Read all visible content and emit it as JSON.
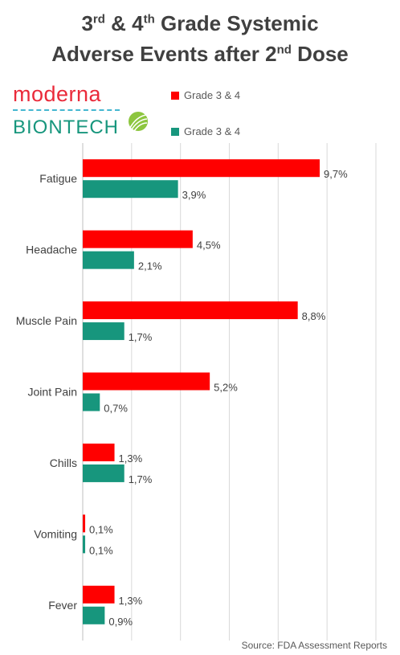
{
  "header": {
    "title_line1_a": "3",
    "title_line1_sup1": "rd",
    "title_line1_b": " & 4",
    "title_line1_sup2": "th",
    "title_line1_c": " Grade Systemic",
    "title_line2_a": "Adverse Events after 2",
    "title_line2_sup": "nd",
    "title_line2_b": " Dose"
  },
  "logos": {
    "moderna": "moderna",
    "biontech": "BIONTECH"
  },
  "source": "Source: FDA Assessment Reports",
  "colors": {
    "moderna": "#ff0000",
    "biontech": "#17967d"
  },
  "chart_data": {
    "type": "bar",
    "orientation": "horizontal",
    "categories": [
      "Fatigue",
      "Headache",
      "Muscle Pain",
      "Joint Pain",
      "Chills",
      "Vomiting",
      "Fever"
    ],
    "series": [
      {
        "name": "Grade 3 & 4",
        "color": "#ff0000",
        "values": [
          9.7,
          4.5,
          8.8,
          5.2,
          1.3,
          0.1,
          1.3
        ],
        "labels": [
          "9,7%",
          "4,5%",
          "8,8%",
          "5,2%",
          "1,3%",
          "0,1%",
          "1,3%"
        ]
      },
      {
        "name": "Grade 3 & 4",
        "color": "#17967d",
        "values": [
          3.9,
          2.1,
          1.7,
          0.7,
          1.7,
          0.1,
          0.9
        ],
        "labels": [
          "3,9%",
          "2,1%",
          "1,7%",
          "0,7%",
          "1,7%",
          "0,1%",
          "0,9%"
        ]
      }
    ],
    "xlim": [
      0,
      12
    ],
    "grid": true,
    "legend_position": "top"
  }
}
